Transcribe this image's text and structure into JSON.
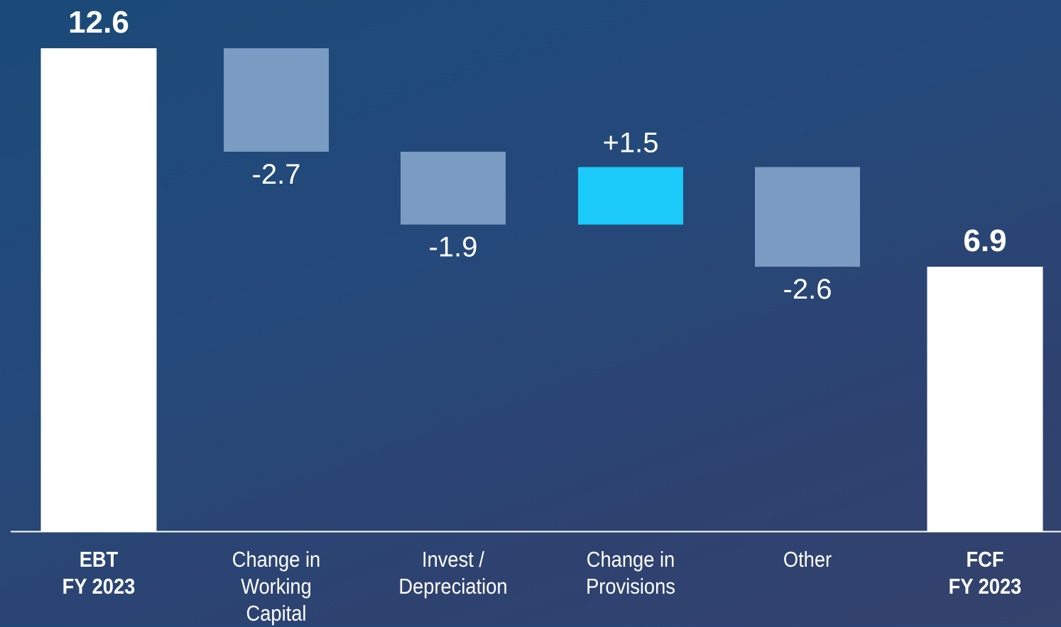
{
  "chart_data": {
    "type": "bar",
    "subtype": "waterfall",
    "categories": [
      "EBT\nFY 2023",
      "Change in\nWorking\nCapital",
      "Invest /\nDepreciation",
      "Change in\nProvisions",
      "Other",
      "FCF\nFY 2023"
    ],
    "values": [
      12.6,
      -2.7,
      -1.9,
      1.5,
      -2.6,
      6.9
    ],
    "value_labels": [
      "12.6",
      "-2.7",
      "-1.9",
      "+1.5",
      "-2.6",
      "6.9"
    ],
    "bar_kinds": [
      "total",
      "delta",
      "delta",
      "delta",
      "delta",
      "total"
    ],
    "ylim": [
      0,
      12.6
    ],
    "grid": false,
    "colors": {
      "total": "#ffffff",
      "decrease": "#7a9bc2",
      "increase": "#1ccaf9",
      "baseline": "#ffffff",
      "text": "#ffffff"
    }
  }
}
